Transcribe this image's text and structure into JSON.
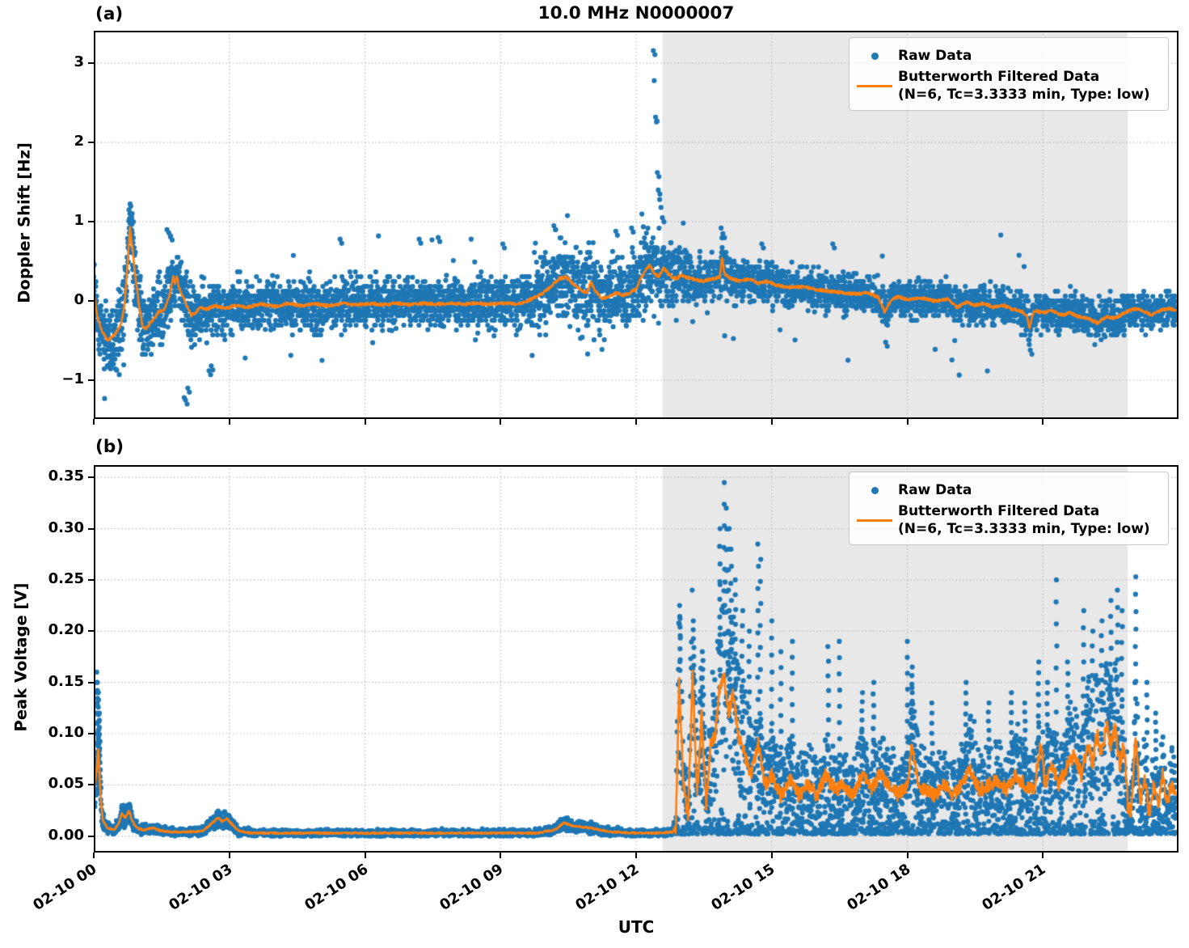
{
  "figure": {
    "title": "10.0 MHz N0000007",
    "xlabel": "UTC",
    "panel_a_tag": "(a)",
    "panel_b_tag": "(b)",
    "colors": {
      "raw": "#1f77b4",
      "filtered": "#ff7f0e",
      "shade": "#e8e8e8",
      "grid": "#b9b9b9",
      "spine": "#000000"
    },
    "legend": {
      "raw_label": "Raw Data",
      "filtered_label_line1": "Butterworth Filtered Data",
      "filtered_label_line2": "(N=6, Tc=3.3333 min, Type: low)"
    }
  },
  "chart_data": [
    {
      "type": "scatter",
      "panel": "a",
      "ylabel": "Doppler Shift [Hz]",
      "xlabel": "UTC",
      "xlim_hours": [
        0,
        24
      ],
      "ylim": [
        -1.49,
        3.41
      ],
      "grid": true,
      "legend_position": "upper right",
      "shaded_region_hours": [
        12.58,
        22.88
      ],
      "yticks": [
        {
          "v": -1,
          "label": "−1"
        },
        {
          "v": 0,
          "label": "0"
        },
        {
          "v": 1,
          "label": "1"
        },
        {
          "v": 2,
          "label": "2"
        },
        {
          "v": 3,
          "label": "3"
        }
      ],
      "xticks": [
        {
          "hour": 0,
          "label": "02-10 00"
        },
        {
          "hour": 3,
          "label": "02-10 03"
        },
        {
          "hour": 6,
          "label": "02-10 06"
        },
        {
          "hour": 9,
          "label": "02-10 09"
        },
        {
          "hour": 12,
          "label": "02-10 12"
        },
        {
          "hour": 15,
          "label": "02-10 15"
        },
        {
          "hour": 18,
          "label": "02-10 18"
        },
        {
          "hour": 21,
          "label": "02-10 21"
        }
      ],
      "series": [
        {
          "name": "Raw Data",
          "type": "scatter",
          "color": "#1f77b4",
          "band": {
            "t": [
              0,
              0.5,
              1,
              1.9,
              2.5,
              3,
              9.4,
              9.8,
              10.5,
              12.3,
              12.7,
              13.2,
              14,
              16,
              18,
              20,
              22,
              24
            ],
            "spread": [
              0.3,
              0.32,
              0.33,
              0.32,
              0.28,
              0.26,
              0.26,
              0.32,
              0.4,
              0.42,
              0.36,
              0.26,
              0.22,
              0.2,
              0.18,
              0.18,
              0.19,
              0.18
            ]
          },
          "outliers": [
            [
              0.78,
              1.15
            ],
            [
              0.8,
              1.1
            ],
            [
              0.84,
              1.05
            ],
            [
              1.62,
              0.9
            ],
            [
              1.66,
              0.86
            ],
            [
              1.7,
              0.82
            ],
            [
              2.0,
              -1.22
            ],
            [
              2.03,
              -1.25
            ],
            [
              2.08,
              -1.1
            ],
            [
              2.55,
              -0.88
            ],
            [
              2.6,
              -0.82
            ],
            [
              3.35,
              -0.72
            ],
            [
              5.05,
              -0.75
            ],
            [
              5.45,
              0.78
            ],
            [
              6.3,
              0.82
            ],
            [
              7.2,
              0.78
            ],
            [
              7.62,
              0.8
            ],
            [
              8.35,
              0.78
            ],
            [
              9.05,
              0.72
            ],
            [
              10.18,
              0.95
            ],
            [
              10.22,
              0.9
            ],
            [
              11.55,
              0.88
            ],
            [
              11.9,
              0.92
            ],
            [
              12.38,
              3.16
            ],
            [
              12.4,
              2.78
            ],
            [
              12.43,
              2.32
            ],
            [
              12.45,
              2.26
            ],
            [
              12.47,
              1.62
            ],
            [
              12.49,
              1.4
            ],
            [
              12.52,
              1.28
            ],
            [
              12.55,
              1.18
            ],
            [
              12.58,
              1.05
            ],
            [
              13.88,
              0.92
            ],
            [
              13.92,
              0.85
            ],
            [
              14.78,
              0.72
            ],
            [
              16.35,
              0.72
            ],
            [
              17.52,
              -0.52
            ],
            [
              19.05,
              -0.5
            ],
            [
              20.72,
              -0.62
            ]
          ]
        },
        {
          "name": "Butterworth Filtered Data (N=6, Tc=3.3333 min, Type: low)",
          "type": "line",
          "color": "#ff7f0e",
          "t": [
            0,
            0.08,
            0.18,
            0.3,
            0.42,
            0.52,
            0.6,
            0.68,
            0.74,
            0.8,
            0.86,
            0.92,
            1.0,
            1.08,
            1.16,
            1.25,
            1.35,
            1.45,
            1.52,
            1.6,
            1.68,
            1.72,
            1.76,
            1.8,
            1.84,
            1.88,
            1.95,
            2.05,
            2.15,
            2.25,
            2.35,
            2.5,
            2.7,
            2.9,
            3.1,
            3.4,
            3.7,
            4.0,
            4.3,
            4.6,
            4.9,
            5.2,
            5.5,
            5.8,
            6.1,
            6.4,
            6.7,
            7.0,
            7.3,
            7.6,
            7.9,
            8.2,
            8.5,
            8.8,
            9.1,
            9.4,
            9.6,
            9.8,
            10.0,
            10.15,
            10.3,
            10.45,
            10.6,
            10.75,
            10.9,
            11.0,
            11.1,
            11.25,
            11.4,
            11.55,
            11.7,
            11.85,
            12.0,
            12.1,
            12.2,
            12.3,
            12.4,
            12.5,
            12.6,
            12.7,
            12.8,
            12.9,
            13.0,
            13.1,
            13.3,
            13.5,
            13.7,
            13.85,
            13.9,
            13.95,
            14.1,
            14.3,
            14.5,
            14.7,
            14.9,
            15.1,
            15.4,
            15.7,
            16.0,
            16.3,
            16.6,
            16.9,
            17.1,
            17.35,
            17.5,
            17.65,
            17.8,
            18.0,
            18.3,
            18.6,
            18.9,
            19.1,
            19.3,
            19.5,
            19.7,
            19.9,
            20.1,
            20.3,
            20.5,
            20.65,
            20.7,
            20.8,
            21.0,
            21.2,
            21.4,
            21.6,
            21.8,
            22.0,
            22.2,
            22.4,
            22.6,
            22.8,
            23.0,
            23.2,
            23.4,
            23.6,
            23.8,
            23.96
          ],
          "v": [
            0.1,
            -0.2,
            -0.38,
            -0.5,
            -0.45,
            -0.38,
            -0.3,
            -0.05,
            0.4,
            0.92,
            0.65,
            0.3,
            -0.05,
            -0.32,
            -0.35,
            -0.28,
            -0.22,
            -0.12,
            -0.15,
            -0.05,
            0.08,
            0.22,
            0.3,
            0.22,
            0.32,
            0.18,
            0.08,
            -0.05,
            -0.18,
            -0.15,
            -0.08,
            -0.1,
            -0.06,
            -0.1,
            -0.06,
            -0.08,
            -0.04,
            -0.07,
            -0.03,
            -0.06,
            -0.04,
            -0.06,
            -0.03,
            -0.05,
            -0.03,
            -0.05,
            -0.03,
            -0.05,
            -0.03,
            -0.04,
            -0.03,
            -0.04,
            -0.03,
            -0.04,
            -0.03,
            -0.04,
            0.0,
            0.06,
            0.12,
            0.2,
            0.28,
            0.3,
            0.22,
            0.15,
            0.1,
            0.24,
            0.12,
            0.03,
            0.06,
            0.1,
            0.07,
            0.1,
            0.15,
            0.28,
            0.38,
            0.45,
            0.35,
            0.3,
            0.42,
            0.35,
            0.3,
            0.28,
            0.33,
            0.3,
            0.27,
            0.25,
            0.28,
            0.3,
            0.55,
            0.35,
            0.28,
            0.25,
            0.28,
            0.22,
            0.25,
            0.2,
            0.17,
            0.18,
            0.14,
            0.12,
            0.1,
            0.09,
            0.1,
            0.05,
            -0.14,
            0.02,
            0.05,
            0.02,
            0.04,
            0.0,
            0.02,
            -0.08,
            -0.02,
            -0.05,
            -0.03,
            -0.08,
            -0.05,
            -0.1,
            -0.12,
            -0.18,
            -0.35,
            -0.12,
            -0.15,
            -0.12,
            -0.18,
            -0.15,
            -0.2,
            -0.22,
            -0.28,
            -0.2,
            -0.22,
            -0.15,
            -0.1,
            -0.12,
            -0.18,
            -0.12,
            -0.1,
            -0.12
          ]
        }
      ]
    },
    {
      "type": "scatter",
      "panel": "b",
      "ylabel": "Peak Voltage [V]",
      "xlabel": "UTC",
      "xlim_hours": [
        0,
        24
      ],
      "ylim": [
        -0.016,
        0.362
      ],
      "grid": true,
      "legend_position": "upper right",
      "shaded_region_hours": [
        12.58,
        22.88
      ],
      "yticks": [
        {
          "v": 0.0,
          "label": "0.00"
        },
        {
          "v": 0.05,
          "label": "0.05"
        },
        {
          "v": 0.1,
          "label": "0.10"
        },
        {
          "v": 0.15,
          "label": "0.15"
        },
        {
          "v": 0.2,
          "label": "0.20"
        },
        {
          "v": 0.25,
          "label": "0.25"
        },
        {
          "v": 0.3,
          "label": "0.30"
        },
        {
          "v": 0.35,
          "label": "0.35"
        }
      ],
      "xticks": [
        {
          "hour": 0,
          "label": "02-10 00"
        },
        {
          "hour": 3,
          "label": "02-10 03"
        },
        {
          "hour": 6,
          "label": "02-10 06"
        },
        {
          "hour": 9,
          "label": "02-10 09"
        },
        {
          "hour": 12,
          "label": "02-10 12"
        },
        {
          "hour": 15,
          "label": "02-10 15"
        },
        {
          "hour": 18,
          "label": "02-10 18"
        },
        {
          "hour": 21,
          "label": "02-10 21"
        }
      ],
      "series": [
        {
          "name": "Raw Data",
          "type": "scatter",
          "color": "#1f77b4",
          "spikes": [
            [
              0.07,
              0.16
            ],
            [
              0.09,
              0.15
            ],
            [
              0.11,
              0.14
            ],
            [
              0.13,
              0.12
            ],
            [
              12.97,
              0.225
            ],
            [
              13.27,
              0.21
            ],
            [
              13.47,
              0.18
            ],
            [
              13.85,
              0.3
            ],
            [
              13.95,
              0.345
            ],
            [
              14.0,
              0.32
            ],
            [
              14.05,
              0.3
            ],
            [
              14.1,
              0.28
            ],
            [
              14.2,
              0.25
            ],
            [
              14.35,
              0.22
            ],
            [
              14.5,
              0.2
            ],
            [
              14.7,
              0.285
            ],
            [
              14.75,
              0.27
            ],
            [
              15.0,
              0.21
            ],
            [
              15.2,
              0.18
            ],
            [
              15.45,
              0.19
            ],
            [
              16.25,
              0.185
            ],
            [
              16.5,
              0.19
            ],
            [
              17.0,
              0.14
            ],
            [
              17.25,
              0.15
            ],
            [
              18.0,
              0.19
            ],
            [
              18.1,
              0.165
            ],
            [
              18.55,
              0.13
            ],
            [
              19.3,
              0.15
            ],
            [
              19.8,
              0.13
            ],
            [
              20.3,
              0.14
            ],
            [
              20.6,
              0.13
            ],
            [
              20.9,
              0.17
            ],
            [
              21.1,
              0.15
            ],
            [
              21.3,
              0.25
            ],
            [
              21.55,
              0.17
            ],
            [
              21.9,
              0.22
            ],
            [
              22.1,
              0.2
            ],
            [
              22.3,
              0.21
            ],
            [
              22.5,
              0.23
            ],
            [
              22.65,
              0.24
            ],
            [
              22.75,
              0.22
            ],
            [
              23.05,
              0.253
            ],
            [
              23.3,
              0.15
            ],
            [
              23.5,
              0.12
            ]
          ]
        },
        {
          "name": "Butterworth Filtered Data (N=6, Tc=3.3333 min, Type: low)",
          "type": "line",
          "color": "#ff7f0e",
          "t": [
            0,
            0.05,
            0.1,
            0.15,
            0.2,
            0.3,
            0.45,
            0.55,
            0.62,
            0.7,
            0.78,
            0.85,
            0.95,
            1.1,
            1.3,
            1.5,
            1.8,
            2.1,
            2.4,
            2.6,
            2.75,
            2.85,
            2.95,
            3.05,
            3.2,
            3.5,
            4,
            5,
            6,
            7,
            8,
            9,
            9.8,
            10.2,
            10.4,
            10.6,
            10.8,
            11.0,
            11.2,
            11.5,
            12.0,
            12.5,
            12.8,
            12.88,
            12.95,
            13.05,
            13.15,
            13.25,
            13.35,
            13.45,
            13.55,
            13.65,
            13.75,
            13.85,
            13.95,
            14.05,
            14.15,
            14.25,
            14.4,
            14.55,
            14.7,
            14.85,
            15.0,
            15.2,
            15.4,
            15.6,
            15.8,
            16.0,
            16.2,
            16.4,
            16.6,
            16.8,
            17.0,
            17.2,
            17.4,
            17.6,
            17.8,
            18.0,
            18.1,
            18.25,
            18.4,
            18.6,
            18.8,
            19.0,
            19.2,
            19.4,
            19.6,
            19.8,
            20.0,
            20.2,
            20.4,
            20.6,
            20.8,
            20.95,
            21.05,
            21.2,
            21.35,
            21.5,
            21.7,
            21.85,
            22.0,
            22.1,
            22.2,
            22.3,
            22.4,
            22.5,
            22.6,
            22.7,
            22.8,
            22.88,
            22.95,
            23.05,
            23.15,
            23.25,
            23.35,
            23.45,
            23.55,
            23.65,
            23.75,
            23.85,
            23.96
          ],
          "v": [
            0.045,
            0.06,
            0.085,
            0.04,
            0.015,
            0.008,
            0.006,
            0.012,
            0.022,
            0.018,
            0.025,
            0.015,
            0.008,
            0.006,
            0.008,
            0.005,
            0.004,
            0.004,
            0.005,
            0.012,
            0.018,
            0.014,
            0.017,
            0.012,
            0.005,
            0.003,
            0.003,
            0.003,
            0.003,
            0.003,
            0.003,
            0.003,
            0.003,
            0.006,
            0.013,
            0.01,
            0.009,
            0.008,
            0.006,
            0.004,
            0.003,
            0.003,
            0.004,
            0.01,
            0.15,
            0.05,
            0.02,
            0.155,
            0.04,
            0.12,
            0.03,
            0.09,
            0.1,
            0.145,
            0.155,
            0.12,
            0.14,
            0.1,
            0.08,
            0.06,
            0.09,
            0.05,
            0.06,
            0.04,
            0.055,
            0.04,
            0.05,
            0.04,
            0.06,
            0.045,
            0.05,
            0.04,
            0.06,
            0.045,
            0.06,
            0.05,
            0.04,
            0.05,
            0.09,
            0.05,
            0.045,
            0.04,
            0.05,
            0.04,
            0.05,
            0.065,
            0.045,
            0.05,
            0.055,
            0.045,
            0.06,
            0.05,
            0.045,
            0.09,
            0.05,
            0.07,
            0.05,
            0.065,
            0.08,
            0.06,
            0.09,
            0.07,
            0.1,
            0.08,
            0.11,
            0.09,
            0.105,
            0.07,
            0.09,
            0.03,
            0.02,
            0.1,
            0.03,
            0.06,
            0.02,
            0.05,
            0.03,
            0.06,
            0.03,
            0.05,
            0.04
          ]
        }
      ]
    }
  ]
}
